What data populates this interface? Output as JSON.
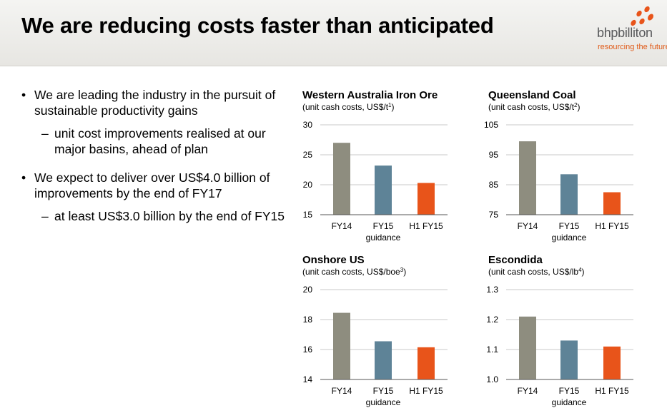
{
  "header": {
    "title": "We are reducing costs faster than anticipated",
    "logo_word": "bhpbilliton",
    "logo_tagline": "resourcing the future"
  },
  "bullets": [
    {
      "text": "We are leading the industry in the pursuit of sustainable productivity gains",
      "sub": "unit cost improvements realised at our major basins, ahead of plan"
    },
    {
      "text": "We expect to deliver over US$4.0 billion of improvements by the end of FY17",
      "sub": "at least US$3.0 billion by the end of FY15"
    }
  ],
  "colors": {
    "fy14": "#8e8d7f",
    "fy15": "#5e8397",
    "h1fy15": "#e8541a",
    "accent": "#e05a18"
  },
  "chart_data": [
    {
      "type": "bar",
      "title": "Western Australia Iron Ore",
      "subtitle": "(unit cash costs, US$/t",
      "unit_sup": "1",
      "subtitle_end": ")",
      "categories": [
        "FY14",
        "FY15",
        "H1 FY15"
      ],
      "category_sub": [
        "",
        "guidance",
        ""
      ],
      "values": [
        27,
        23.2,
        20.3
      ],
      "ylim": [
        15,
        30
      ],
      "yticks": [
        15,
        20,
        25,
        30
      ],
      "tick_labels": [
        "15",
        "20",
        "25",
        "30"
      ]
    },
    {
      "type": "bar",
      "title": "Queensland Coal",
      "subtitle": "(unit cash costs, US$/t",
      "unit_sup": "2",
      "subtitle_end": ")",
      "categories": [
        "FY14",
        "FY15",
        "H1 FY15"
      ],
      "category_sub": [
        "",
        "guidance",
        ""
      ],
      "values": [
        99.5,
        88.5,
        82.5
      ],
      "ylim": [
        75,
        105
      ],
      "yticks": [
        75,
        85,
        95,
        105
      ],
      "tick_labels": [
        "75",
        "85",
        "95",
        "105"
      ]
    },
    {
      "type": "bar",
      "title": "Onshore US",
      "subtitle": "(unit cash costs, US$/boe",
      "unit_sup": "3",
      "subtitle_end": ")",
      "categories": [
        "FY14",
        "FY15",
        "H1 FY15"
      ],
      "category_sub": [
        "",
        "guidance",
        ""
      ],
      "values": [
        18.45,
        16.55,
        16.15
      ],
      "ylim": [
        14,
        20
      ],
      "yticks": [
        14,
        16,
        18,
        20
      ],
      "tick_labels": [
        "14",
        "16",
        "18",
        "20"
      ]
    },
    {
      "type": "bar",
      "title": "Escondida",
      "subtitle": "(unit cash costs, US$/lb",
      "unit_sup": "4",
      "subtitle_end": ")",
      "categories": [
        "FY14",
        "FY15",
        "H1 FY15"
      ],
      "category_sub": [
        "",
        "guidance",
        ""
      ],
      "values": [
        1.21,
        1.13,
        1.11
      ],
      "ylim": [
        1.0,
        1.3
      ],
      "yticks": [
        1.0,
        1.1,
        1.2,
        1.3
      ],
      "tick_labels": [
        "1.0",
        "1.1",
        "1.2",
        "1.3"
      ]
    }
  ]
}
